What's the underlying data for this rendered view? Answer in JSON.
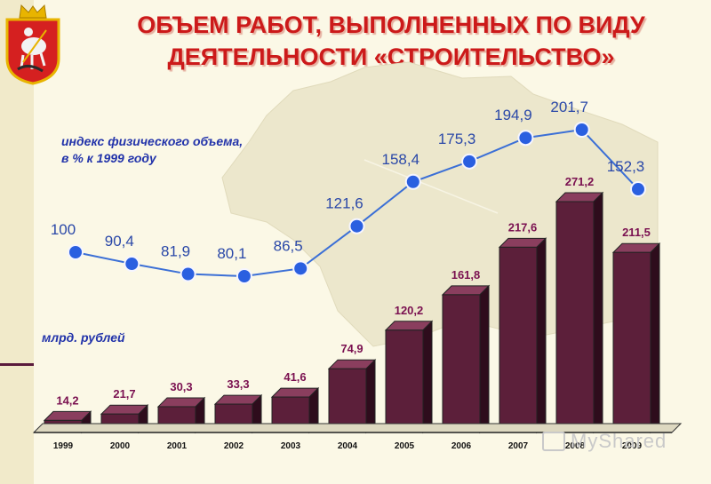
{
  "title": {
    "line1": "ОБЪЕМ РАБОТ, ВЫПОЛНЕННЫХ ПО ВИДУ",
    "line2": "ДЕЯТЕЛЬНОСТИ «СТРОИТЕЛЬСТВО»"
  },
  "index_note": {
    "line1": "индекс физического объема,",
    "line2": "в % к 1999 году"
  },
  "bar_unit_label": "млрд. рублей",
  "watermark": "MyShared",
  "colors": {
    "title": "#cc1a1a",
    "line": "#3b6fd6",
    "marker": "#2a5fe0",
    "line_label": "#2a48a8",
    "bar_front": "#5c1f3a",
    "bar_label": "#7a1050",
    "background": "#fbf8e6"
  },
  "chart_data": [
    {
      "type": "bar",
      "categories": [
        "1999",
        "2000",
        "2001",
        "2002",
        "2003",
        "2004",
        "2005",
        "2006",
        "2007",
        "2008",
        "2009"
      ],
      "values": [
        14.2,
        21.7,
        30.3,
        33.3,
        41.6,
        74.9,
        120.2,
        161.8,
        217.6,
        271.2,
        211.5
      ],
      "value_labels": [
        "14,2",
        "21,7",
        "30,3",
        "33,3",
        "41,6",
        "74,9",
        "120,2",
        "161,8",
        "217,6",
        "271,2",
        "211,5"
      ],
      "ylabel": "млрд. рублей",
      "ylim": [
        0,
        271.2
      ],
      "grid": false,
      "style": "3d"
    },
    {
      "type": "line",
      "x": [
        "1999",
        "2000",
        "2001",
        "2002",
        "2003",
        "2004",
        "2005",
        "2006",
        "2007",
        "2008",
        "2009"
      ],
      "values": [
        100,
        90.4,
        81.9,
        80.1,
        86.5,
        121.6,
        158.4,
        175.3,
        194.9,
        201.7,
        152.3
      ],
      "value_labels": [
        "100",
        "90,4",
        "81,9",
        "80,1",
        "86,5",
        "121,6",
        "158,4",
        "175,3",
        "194,9",
        "201,7",
        "152,3"
      ],
      "ylabel": "индекс физического объема, в % к 1999 году",
      "ylim": [
        80.1,
        201.7
      ],
      "grid": false
    }
  ]
}
